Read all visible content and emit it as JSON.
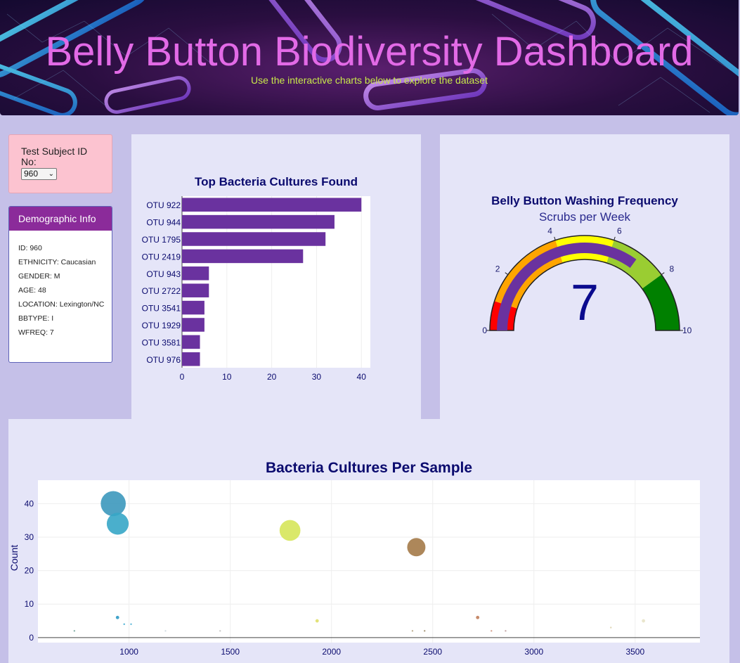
{
  "header": {
    "title": "Belly Button Biodiversity Dashboard",
    "subtitle": "Use the interactive charts below to explore the dataset"
  },
  "selector": {
    "label": "Test Subject ID No:",
    "value": "960"
  },
  "demographics": {
    "title": "Demographic Info",
    "items": [
      "ID: 960",
      "ETHNICITY: Caucasian",
      "GENDER: M",
      "AGE: 48",
      "LOCATION: Lexington/NC",
      "BBTYPE: I",
      "WFREQ: 7"
    ]
  },
  "colors": {
    "bar": "#6a329f",
    "gauge_needle_bar": "#6a329f",
    "gauge_steps": [
      "#ff0000",
      "#ffa500",
      "#ffff00",
      "#9acd32",
      "#008000"
    ],
    "title_text": "#0a0a6e"
  },
  "chart_data": [
    {
      "type": "bar",
      "orientation": "horizontal",
      "title": "Top Bacteria Cultures Found",
      "categories": [
        "OTU 922",
        "OTU 944",
        "OTU 1795",
        "OTU 2419",
        "OTU 943",
        "OTU 2722",
        "OTU 3541",
        "OTU 1929",
        "OTU 3581",
        "OTU 976"
      ],
      "values": [
        40,
        34,
        32,
        27,
        6,
        6,
        5,
        5,
        4,
        4
      ],
      "xticks": [
        "0",
        "10",
        "20",
        "30",
        "40"
      ],
      "xlim": [
        0,
        42
      ]
    },
    {
      "type": "gauge",
      "title": "Belly Button Washing Frequency",
      "subtitle": "Scrubs per Week",
      "value": 7,
      "display_value": "7",
      "range": [
        0,
        10
      ],
      "ticks": [
        "0",
        "2",
        "4",
        "6",
        "8",
        "10"
      ],
      "steps": [
        [
          0,
          1
        ],
        [
          1,
          4
        ],
        [
          4,
          6
        ],
        [
          6,
          8
        ],
        [
          8,
          10
        ]
      ]
    },
    {
      "type": "scatter",
      "title": "Bacteria Cultures Per Sample",
      "ylabel": "Count",
      "xticks": [
        "1000",
        "1500",
        "2000",
        "2500",
        "3000",
        "3500"
      ],
      "yticks": [
        "0",
        "10",
        "20",
        "30",
        "40"
      ],
      "xlim": [
        550,
        3820
      ],
      "ylim": [
        -1.5,
        47
      ],
      "points": [
        {
          "x": 922,
          "y": 40,
          "color": "#3c98bc"
        },
        {
          "x": 944,
          "y": 34,
          "color": "#36a6c7"
        },
        {
          "x": 1795,
          "y": 32,
          "color": "#d6e65a"
        },
        {
          "x": 2419,
          "y": 27,
          "color": "#a47a48"
        },
        {
          "x": 943,
          "y": 6,
          "color": "#2e9ac5"
        },
        {
          "x": 2722,
          "y": 6,
          "color": "#c07d5a"
        },
        {
          "x": 976,
          "y": 4,
          "color": "#39a8d0"
        },
        {
          "x": 1010,
          "y": 4,
          "color": "#4ab0d4"
        },
        {
          "x": 1929,
          "y": 5,
          "color": "#e0df6a"
        },
        {
          "x": 3541,
          "y": 5,
          "color": "#e8e3c8"
        },
        {
          "x": 730,
          "y": 2,
          "color": "#7aa7a0"
        },
        {
          "x": 1450,
          "y": 2,
          "color": "#c5c5c5"
        },
        {
          "x": 2400,
          "y": 2,
          "color": "#b9a98a"
        },
        {
          "x": 2460,
          "y": 2,
          "color": "#a08f70"
        },
        {
          "x": 2790,
          "y": 2,
          "color": "#d19a86"
        },
        {
          "x": 2860,
          "y": 2,
          "color": "#bfa0a0"
        },
        {
          "x": 3380,
          "y": 3,
          "color": "#ddd3b0"
        },
        {
          "x": 1180,
          "y": 2,
          "color": "#cfd9e0"
        }
      ]
    }
  ]
}
